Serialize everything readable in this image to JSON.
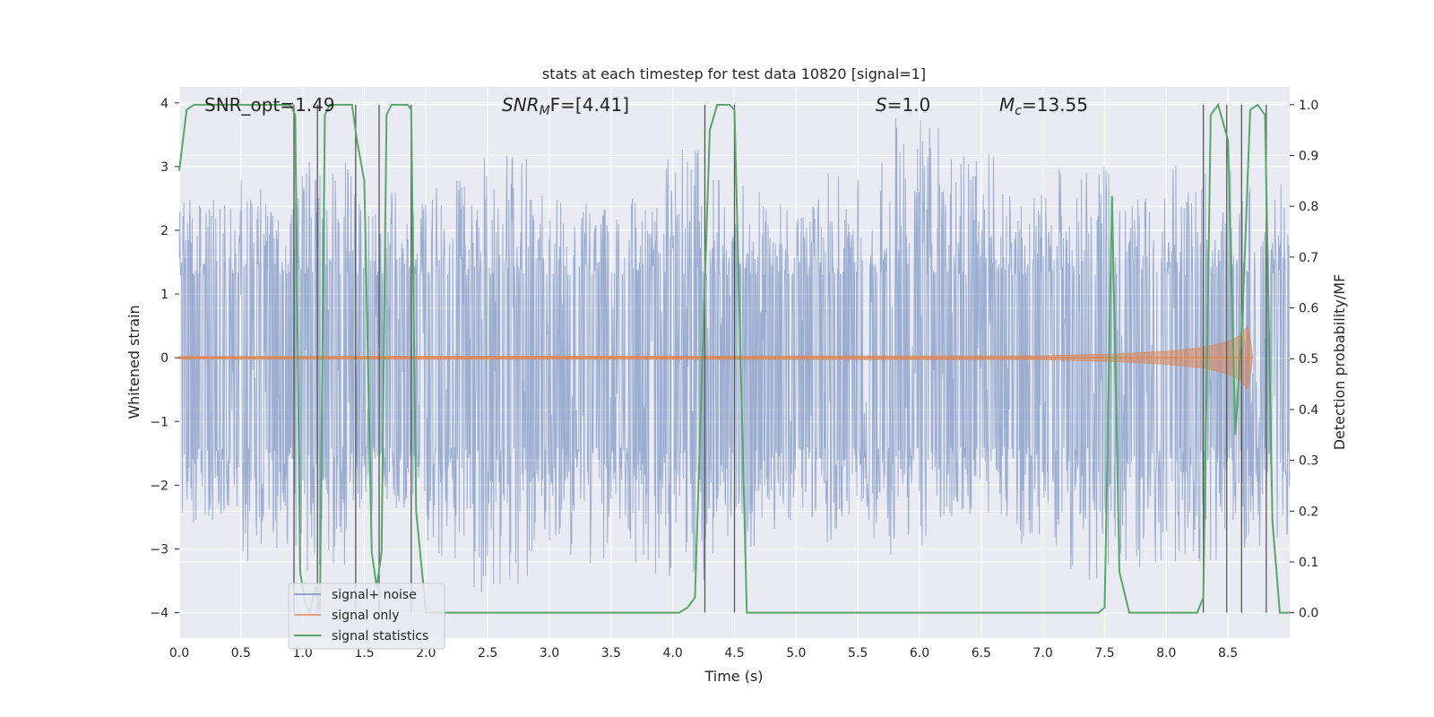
{
  "chart_data": {
    "type": "line",
    "title": "stats at each timestep for test data 10820 [signal=1]",
    "xlabel": "Time (s)",
    "ylabel_left": "Whitened strain",
    "ylabel_right": "Detection probability/MF",
    "xlim": [
      0,
      9.0
    ],
    "ylim_left": [
      -4.4,
      4.25
    ],
    "ylim_right": [
      -0.05,
      1.035
    ],
    "grid": true,
    "x_ticks": [
      "0.0",
      "0.5",
      "1.0",
      "1.5",
      "2.0",
      "2.5",
      "3.0",
      "3.5",
      "4.0",
      "4.5",
      "5.0",
      "5.5",
      "6.0",
      "6.5",
      "7.0",
      "7.5",
      "8.0",
      "8.5"
    ],
    "y_ticks_left": [
      "−4",
      "−3",
      "−2",
      "−1",
      "0",
      "1",
      "2",
      "3",
      "4"
    ],
    "y_ticks_right": [
      "0.0",
      "0.1",
      "0.2",
      "0.3",
      "0.4",
      "0.5",
      "0.6",
      "0.7",
      "0.8",
      "0.9",
      "1.0"
    ],
    "annotations": {
      "snr_opt": "SNR_opt=1.49",
      "snr_mf": "SNR",
      "snr_mf_sub": "M",
      "snr_mf_rest": "F=[4.41]",
      "s_sym": "S",
      "s_val": "=1.0",
      "mc_sym": "M",
      "mc_sub": "c",
      "mc_val": "=13.55"
    },
    "legend": {
      "position": "lower-left",
      "entries": [
        "signal+ noise",
        "signal only",
        "signal statistics"
      ]
    },
    "series": [
      {
        "name": "signal+ noise",
        "color": "#4c72b0",
        "noise_envelope_upper": [
          2.5,
          2.8,
          3.1,
          2.6,
          2.9,
          3.2,
          2.7,
          2.6,
          3.3,
          2.8,
          2.5,
          3.0,
          3.8,
          3.2,
          2.6,
          3.0,
          2.7,
          3.1,
          2.9
        ],
        "noise_envelope_lower": [
          -2.6,
          -3.2,
          -3.4,
          -2.5,
          -3.3,
          -3.7,
          -3.1,
          -3.3,
          -3.6,
          -3.2,
          -2.8,
          -2.9,
          -3.1,
          -2.8,
          -3.0,
          -3.5,
          -3.3,
          -3.2,
          -3.0
        ]
      },
      {
        "name": "signal only",
        "color": "#dd8452",
        "x": [
          0,
          7.0,
          7.6,
          8.0,
          8.3,
          8.5,
          8.6,
          8.66,
          8.68,
          8.7
        ],
        "amplitude": [
          0.02,
          0.03,
          0.06,
          0.1,
          0.16,
          0.25,
          0.35,
          0.5,
          0.3,
          0.0
        ]
      },
      {
        "name": "signal statistics",
        "color": "#55a868",
        "x": [
          0,
          0.06,
          0.12,
          0.9,
          0.94,
          0.98,
          1.02,
          1.06,
          1.1,
          1.14,
          1.18,
          1.22,
          1.4,
          1.44,
          1.5,
          1.56,
          1.6,
          1.64,
          1.68,
          1.72,
          1.85,
          1.88,
          1.92,
          2.0,
          4.05,
          4.12,
          4.18,
          4.24,
          4.3,
          4.36,
          4.46,
          4.5,
          4.6,
          7.45,
          7.5,
          7.56,
          7.62,
          7.7,
          8.25,
          8.3,
          8.36,
          8.42,
          8.5,
          8.56,
          8.62,
          8.68,
          8.74,
          8.8,
          8.86,
          8.92,
          9.0
        ],
        "values": [
          0.87,
          0.99,
          1.0,
          1.0,
          0.98,
          0.08,
          0.02,
          0.0,
          0.05,
          0.0,
          0.98,
          1.0,
          1.0,
          0.93,
          0.85,
          0.12,
          0.05,
          0.12,
          0.98,
          1.0,
          1.0,
          0.99,
          0.2,
          0.0,
          0.0,
          0.01,
          0.03,
          0.5,
          0.95,
          1.0,
          1.0,
          0.99,
          0.0,
          0.0,
          0.01,
          0.82,
          0.08,
          0.0,
          0.0,
          0.03,
          0.98,
          1.0,
          0.93,
          0.35,
          0.6,
          0.99,
          1.0,
          0.98,
          0.18,
          0.0,
          0.0
        ]
      }
    ],
    "vertical_lines": [
      0.93,
      1.12,
      1.43,
      1.62,
      1.88,
      4.26,
      4.5,
      8.3,
      8.49,
      8.61,
      8.81
    ]
  }
}
